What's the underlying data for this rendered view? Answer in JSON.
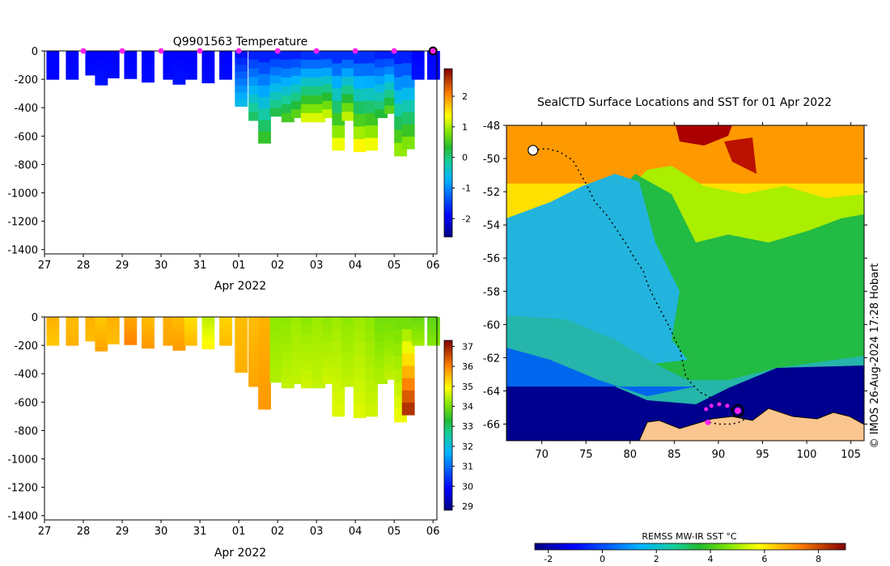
{
  "chart_data": [
    {
      "type": "heatmap",
      "title": "Q9901563  Temperature",
      "xlabel": "Apr 2022",
      "ylabel": "",
      "x_ticks": [
        "27",
        "28",
        "29",
        "30",
        "31",
        "01",
        "02",
        "03",
        "04",
        "05",
        "06"
      ],
      "y_ticks": [
        "0",
        "-200",
        "-400",
        "-600",
        "-800",
        "-1000",
        "-1200",
        "-1400"
      ],
      "xlim": [
        27,
        37.1
      ],
      "ylim": [
        -1430,
        0
      ],
      "colorbar": {
        "range": [
          -2.6,
          2.9
        ],
        "ticks": [
          "2",
          "1",
          "0",
          "-1",
          "-2"
        ],
        "tick_values": [
          2,
          1,
          0,
          -1,
          -2
        ]
      },
      "surface_markers_days": [
        28,
        29,
        30,
        31,
        32,
        33,
        34,
        35,
        36
      ],
      "last_marker_day": 37,
      "profiles": [
        {
          "day": 27.05,
          "max_depth": 200,
          "top": -1.9,
          "bottom": -1.9
        },
        {
          "day": 27.55,
          "max_depth": 200,
          "top": -1.9,
          "bottom": -1.85
        },
        {
          "day": 28.05,
          "max_depth": 170,
          "top": -1.9,
          "bottom": -1.85
        },
        {
          "day": 28.3,
          "max_depth": 240,
          "top": -1.9,
          "bottom": -1.8
        },
        {
          "day": 28.6,
          "max_depth": 190,
          "top": -1.9,
          "bottom": -1.85
        },
        {
          "day": 29.05,
          "max_depth": 195,
          "top": -1.9,
          "bottom": -1.85
        },
        {
          "day": 29.5,
          "max_depth": 220,
          "top": -1.9,
          "bottom": -1.85
        },
        {
          "day": 30.05,
          "max_depth": 200,
          "top": -1.9,
          "bottom": -1.85
        },
        {
          "day": 30.3,
          "max_depth": 235,
          "top": -1.9,
          "bottom": -1.8
        },
        {
          "day": 30.6,
          "max_depth": 200,
          "top": -1.9,
          "bottom": -1.85
        },
        {
          "day": 31.05,
          "max_depth": 225,
          "top": -1.9,
          "bottom": -1.85
        },
        {
          "day": 31.5,
          "max_depth": 200,
          "top": -1.9,
          "bottom": -1.85
        },
        {
          "day": 31.9,
          "max_depth": 390,
          "top": -1.8,
          "bottom": -0.6
        },
        {
          "day": 32.25,
          "max_depth": 490,
          "top": -1.7,
          "bottom": 0.1
        },
        {
          "day": 32.5,
          "max_depth": 650,
          "top": -1.7,
          "bottom": 0.4
        },
        {
          "day": 32.8,
          "max_depth": 460,
          "top": -1.7,
          "bottom": 0.2
        },
        {
          "day": 33.1,
          "max_depth": 500,
          "top": -1.7,
          "bottom": 0.5
        },
        {
          "day": 33.35,
          "max_depth": 470,
          "top": -1.7,
          "bottom": 0.6
        },
        {
          "day": 33.6,
          "max_depth": 500,
          "top": -1.6,
          "bottom": 1.2
        },
        {
          "day": 33.9,
          "max_depth": 500,
          "top": -1.6,
          "bottom": 1.2
        },
        {
          "day": 34.15,
          "max_depth": 470,
          "top": -1.6,
          "bottom": 1.1
        },
        {
          "day": 34.4,
          "max_depth": 700,
          "top": -1.6,
          "bottom": 1.3
        },
        {
          "day": 34.65,
          "max_depth": 490,
          "top": -1.6,
          "bottom": 1.1
        },
        {
          "day": 34.95,
          "max_depth": 710,
          "top": -1.6,
          "bottom": 1.4
        },
        {
          "day": 35.25,
          "max_depth": 700,
          "top": -1.6,
          "bottom": 1.3
        },
        {
          "day": 35.5,
          "max_depth": 470,
          "top": -1.7,
          "bottom": 0.3
        },
        {
          "day": 35.75,
          "max_depth": 440,
          "top": -1.7,
          "bottom": 0.6
        },
        {
          "day": 36.0,
          "max_depth": 740,
          "top": -1.7,
          "bottom": 0.9
        },
        {
          "day": 36.2,
          "max_depth": 690,
          "top": -1.7,
          "bottom": 0.8
        },
        {
          "day": 36.45,
          "max_depth": 200,
          "top": -1.9,
          "bottom": -1.8
        },
        {
          "day": 36.85,
          "max_depth": 200,
          "top": -1.9,
          "bottom": -1.85
        }
      ]
    },
    {
      "type": "heatmap",
      "title": "",
      "xlabel": "Apr 2022",
      "ylabel": "",
      "x_ticks": [
        "27",
        "28",
        "29",
        "30",
        "31",
        "01",
        "02",
        "03",
        "04",
        "05",
        "06"
      ],
      "y_ticks": [
        "0",
        "-200",
        "-400",
        "-600",
        "-800",
        "-1000",
        "-1200",
        "-1400"
      ],
      "xlim": [
        27,
        37.1
      ],
      "ylim": [
        -1430,
        0
      ],
      "colorbar": {
        "range": [
          28.8,
          37.3
        ],
        "ticks": [
          "37",
          "36",
          "35",
          "34",
          "33",
          "32",
          "31",
          "30",
          "29"
        ],
        "tick_values": [
          37,
          36,
          35,
          34,
          33,
          32,
          31,
          30,
          29
        ]
      },
      "profiles": [
        {
          "day": 27.05,
          "max_depth": 200,
          "top": 35.6,
          "bottom": 35.4
        },
        {
          "day": 27.55,
          "max_depth": 200,
          "top": 35.5,
          "bottom": 35.6
        },
        {
          "day": 28.05,
          "max_depth": 170,
          "top": 35.6,
          "bottom": 35.5
        },
        {
          "day": 28.3,
          "max_depth": 240,
          "top": 35.4,
          "bottom": 35.7
        },
        {
          "day": 28.6,
          "max_depth": 190,
          "top": 35.6,
          "bottom": 35.5
        },
        {
          "day": 29.05,
          "max_depth": 195,
          "top": 35.7,
          "bottom": 36.0
        },
        {
          "day": 29.5,
          "max_depth": 220,
          "top": 35.5,
          "bottom": 35.8
        },
        {
          "day": 30.05,
          "max_depth": 200,
          "top": 35.6,
          "bottom": 35.7
        },
        {
          "day": 30.3,
          "max_depth": 235,
          "top": 35.5,
          "bottom": 35.8
        },
        {
          "day": 30.6,
          "max_depth": 200,
          "top": 35.2,
          "bottom": 35.5
        },
        {
          "day": 31.05,
          "max_depth": 225,
          "top": 34.5,
          "bottom": 35.0
        },
        {
          "day": 31.5,
          "max_depth": 200,
          "top": 35.3,
          "bottom": 35.5
        },
        {
          "day": 31.9,
          "max_depth": 390,
          "top": 35.5,
          "bottom": 35.6
        },
        {
          "day": 32.25,
          "max_depth": 490,
          "top": 35.5,
          "bottom": 35.7
        },
        {
          "day": 32.5,
          "max_depth": 650,
          "top": 35.6,
          "bottom": 35.8
        },
        {
          "day": 32.8,
          "max_depth": 460,
          "top": 34.2,
          "bottom": 34.4
        },
        {
          "day": 33.1,
          "max_depth": 500,
          "top": 34.2,
          "bottom": 34.5
        },
        {
          "day": 33.35,
          "max_depth": 470,
          "top": 34.3,
          "bottom": 34.5
        },
        {
          "day": 33.6,
          "max_depth": 500,
          "top": 34.2,
          "bottom": 34.6
        },
        {
          "day": 33.9,
          "max_depth": 500,
          "top": 34.3,
          "bottom": 34.5
        },
        {
          "day": 34.15,
          "max_depth": 470,
          "top": 34.2,
          "bottom": 34.6
        },
        {
          "day": 34.4,
          "max_depth": 700,
          "top": 34.3,
          "bottom": 34.7
        },
        {
          "day": 34.65,
          "max_depth": 490,
          "top": 34.2,
          "bottom": 34.5
        },
        {
          "day": 34.95,
          "max_depth": 710,
          "top": 34.3,
          "bottom": 34.7
        },
        {
          "day": 35.25,
          "max_depth": 700,
          "top": 34.2,
          "bottom": 34.6
        },
        {
          "day": 35.5,
          "max_depth": 470,
          "top": 34.0,
          "bottom": 34.4
        },
        {
          "day": 35.75,
          "max_depth": 440,
          "top": 34.0,
          "bottom": 34.5
        },
        {
          "day": 36.0,
          "max_depth": 740,
          "top": 34.0,
          "bottom": 34.8
        },
        {
          "day": 36.2,
          "max_depth": 690,
          "top": 34.0,
          "bottom": 36.8
        },
        {
          "day": 36.45,
          "max_depth": 200,
          "top": 33.9,
          "bottom": 34.3
        },
        {
          "day": 36.85,
          "max_depth": 200,
          "top": 33.8,
          "bottom": 34.1
        }
      ]
    },
    {
      "type": "heatmap",
      "title": "SealCTD Surface Locations and SST for 01 Apr 2022",
      "xlabel": "",
      "ylabel": "",
      "x_ticks": [
        "70",
        "75",
        "80",
        "85",
        "90",
        "95",
        "100",
        "105"
      ],
      "y_ticks": [
        "-48",
        "-50",
        "-52",
        "-54",
        "-56",
        "-58",
        "-60",
        "-62",
        "-64",
        "-66"
      ],
      "xlim": [
        66,
        106.5
      ],
      "ylim": [
        -67,
        -48
      ],
      "colorbar": {
        "label": "REMSS MW-IR SST °C",
        "range": [
          -2.5,
          9
        ],
        "ticks": [
          "-2",
          "0",
          "2",
          "4",
          "6",
          "8"
        ],
        "tick_values": [
          -2,
          0,
          2,
          4,
          6,
          8
        ]
      },
      "track_lon": [
        69.0,
        70.5,
        72.0,
        73.5,
        75.0,
        76.0,
        77.5,
        78.5,
        79.5,
        80.5,
        81.5,
        82.0,
        82.7,
        83.5,
        84.3,
        85.0,
        85.7,
        86.0,
        86.3,
        87.0,
        88.0,
        89.5,
        90.5,
        91.5,
        92.0,
        92.8,
        93.0,
        92.3,
        91.5,
        90.0,
        89.0
      ],
      "track_lat": [
        -49.5,
        -49.4,
        -49.6,
        -50.1,
        -51.5,
        -52.6,
        -53.5,
        -54.3,
        -55.1,
        -56.0,
        -56.8,
        -57.6,
        -58.4,
        -59.2,
        -60.0,
        -60.8,
        -61.6,
        -62.4,
        -63.1,
        -63.6,
        -64.1,
        -64.5,
        -64.8,
        -65.1,
        -65.3,
        -65.5,
        -65.7,
        -65.9,
        -66.0,
        -66.0,
        -65.9
      ],
      "sst_markers_lon": [
        88.6,
        89.2,
        90.1,
        91.0,
        92.2
      ],
      "sst_markers_lat": [
        -65.1,
        -64.9,
        -64.8,
        -64.9,
        -65.2
      ],
      "sst_markers_value": [
        -1.8,
        -1.8,
        -1.8,
        -1.8,
        -1.7
      ],
      "marker_ring_lon": 92.2,
      "marker_ring_lat": -65.2,
      "deep_marker_lon": 88.8,
      "deep_marker_lat": -65.9
    }
  ],
  "credit": "© IMOS 26-Aug-2024 17:28 Hobart"
}
